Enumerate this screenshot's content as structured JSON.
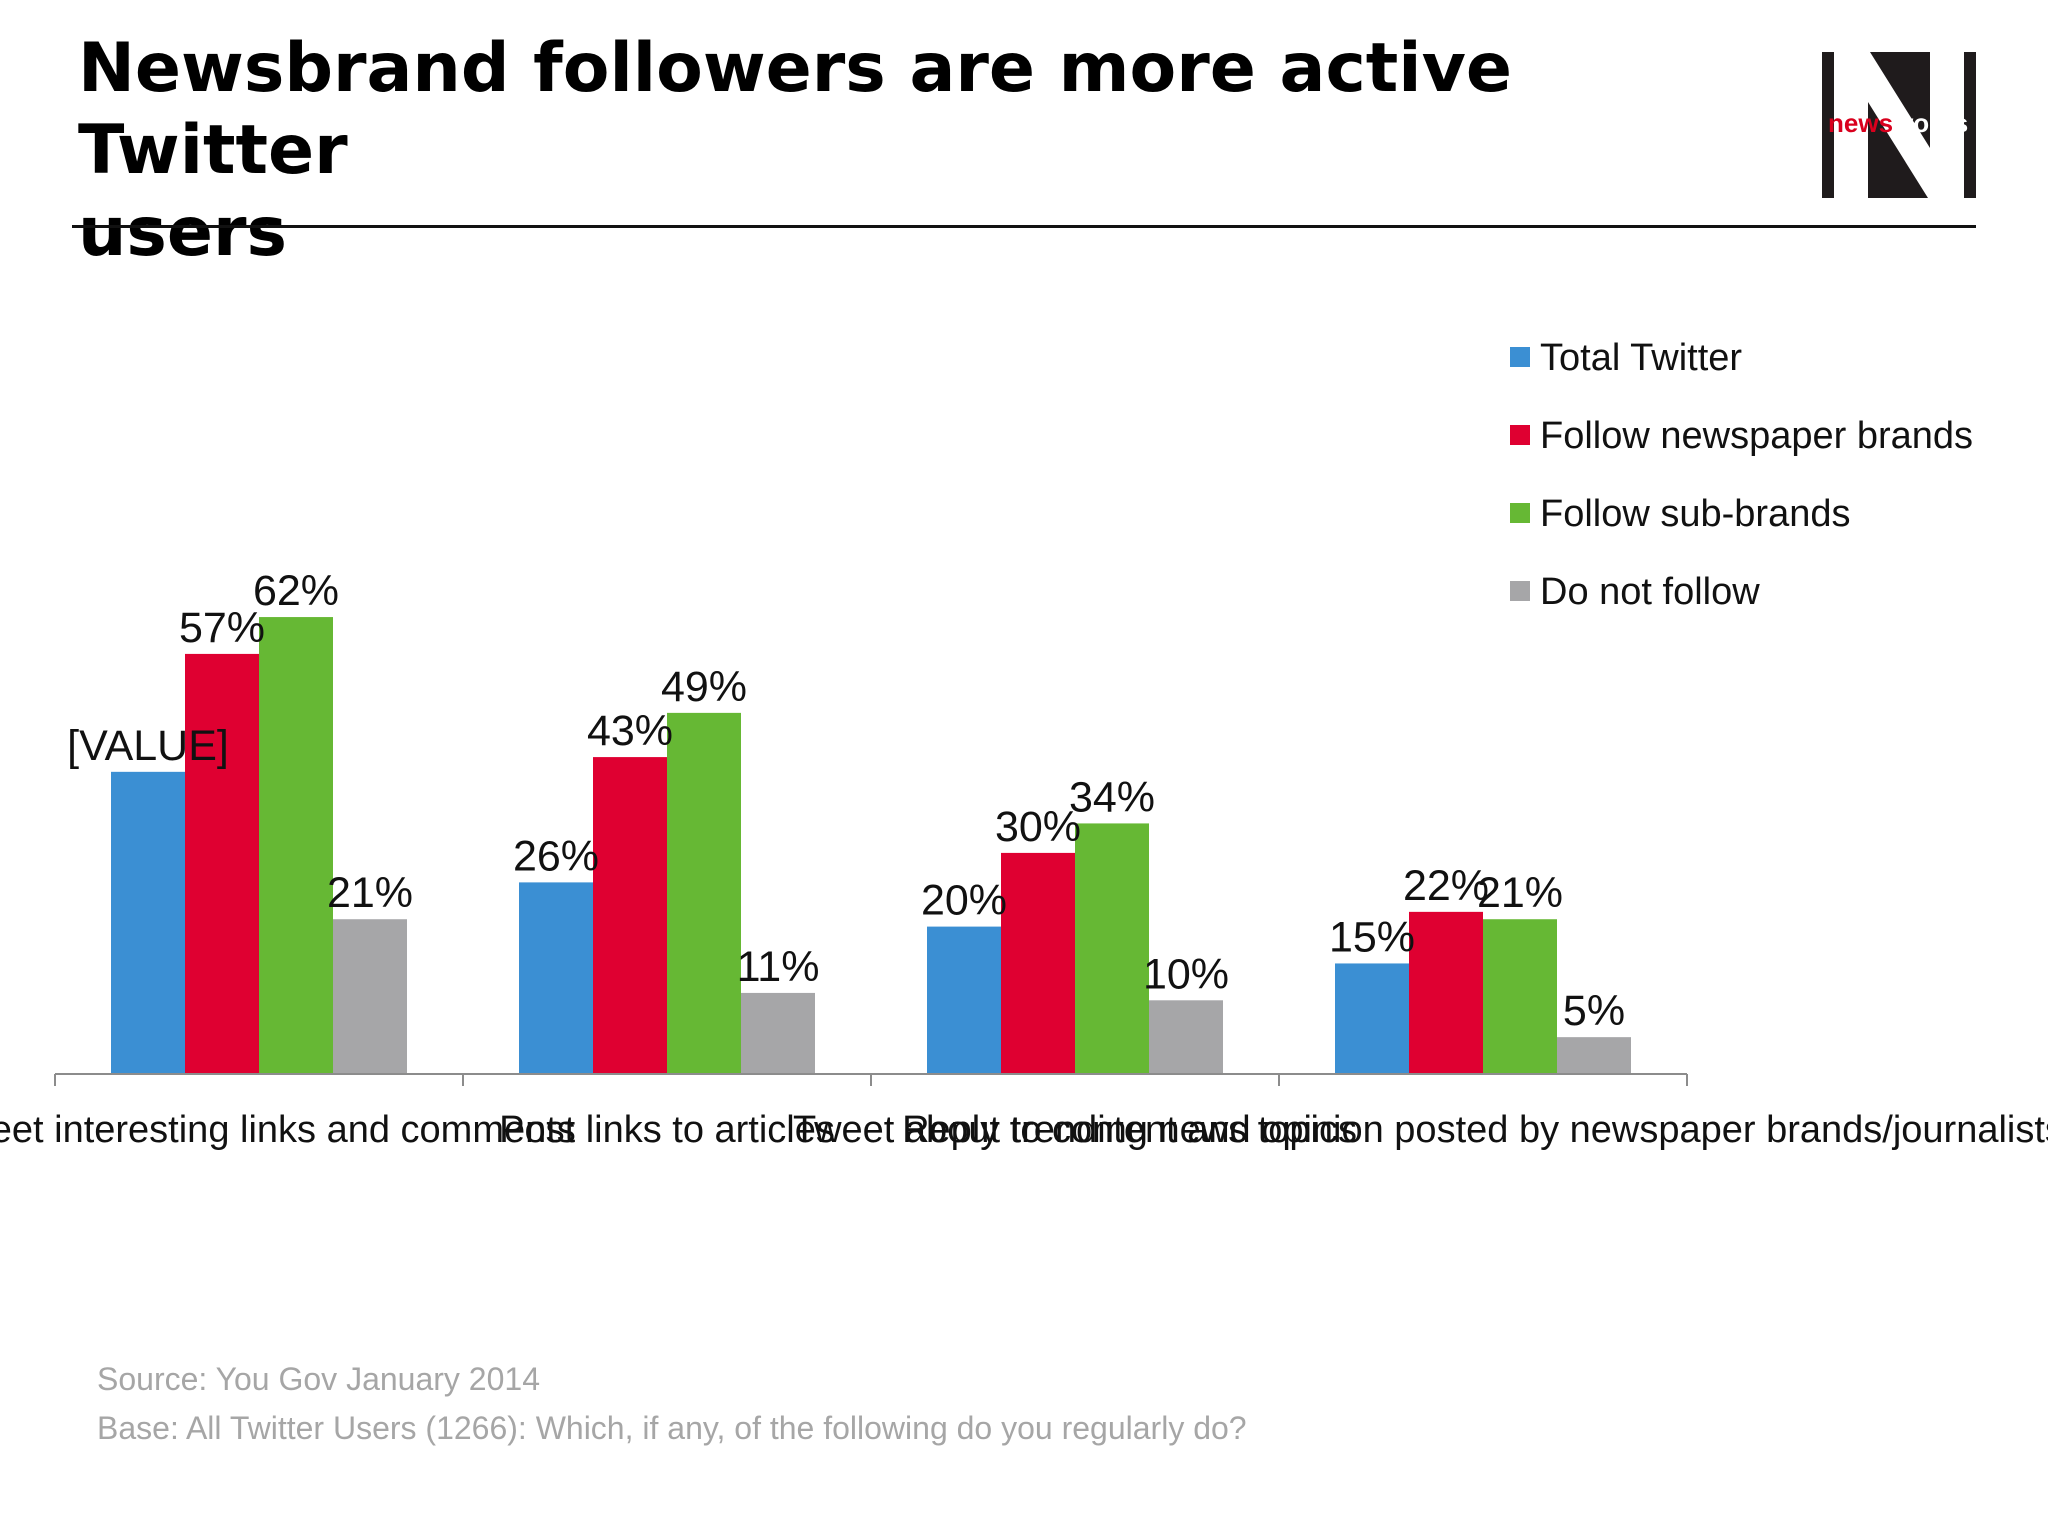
{
  "header": {
    "title_line1": "Newsbrand followers are more active Twitter",
    "title_line2": "users",
    "logo_text_a": "news",
    "logo_text_b": "works"
  },
  "colors": {
    "total_twitter": "#3b8fd3",
    "follow_newspaper": "#df0031",
    "follow_sub": "#66b834",
    "do_not_follow": "#a6a6a8",
    "brand": "#1f1b1c"
  },
  "chart_data": {
    "type": "bar",
    "categories": [
      "Tweet interesting links and comments",
      "Post links to articles",
      "Tweet about trending news topics",
      "Reply to content and opinion posted by newspaper brands/journalists"
    ],
    "series": [
      {
        "name": "Total Twitter",
        "values": [
          41,
          26,
          20,
          15
        ],
        "labels": [
          "[VALUE]",
          "26%",
          "20%",
          "15%"
        ]
      },
      {
        "name": "Follow newspaper brands",
        "values": [
          57,
          43,
          30,
          22
        ],
        "labels": [
          "57%",
          "43%",
          "30%",
          "22%"
        ]
      },
      {
        "name": "Follow sub-brands",
        "values": [
          62,
          49,
          34,
          21
        ],
        "labels": [
          "62%",
          "49%",
          "34%",
          "21%"
        ]
      },
      {
        "name": "Do not follow",
        "values": [
          21,
          11,
          10,
          5
        ],
        "labels": [
          "21%",
          "11%",
          "10%",
          "5%"
        ]
      }
    ],
    "ylim": [
      0,
      70
    ],
    "legend_position": "top-right",
    "grid": false
  },
  "legend": {
    "items": [
      "Total Twitter",
      "Follow newspaper brands",
      "Follow sub-brands",
      "Do not follow"
    ]
  },
  "footer": {
    "source": "Source: You Gov January 2014",
    "base": "Base: All Twitter Users (1266): Which, if any, of the following do you regularly do?"
  }
}
